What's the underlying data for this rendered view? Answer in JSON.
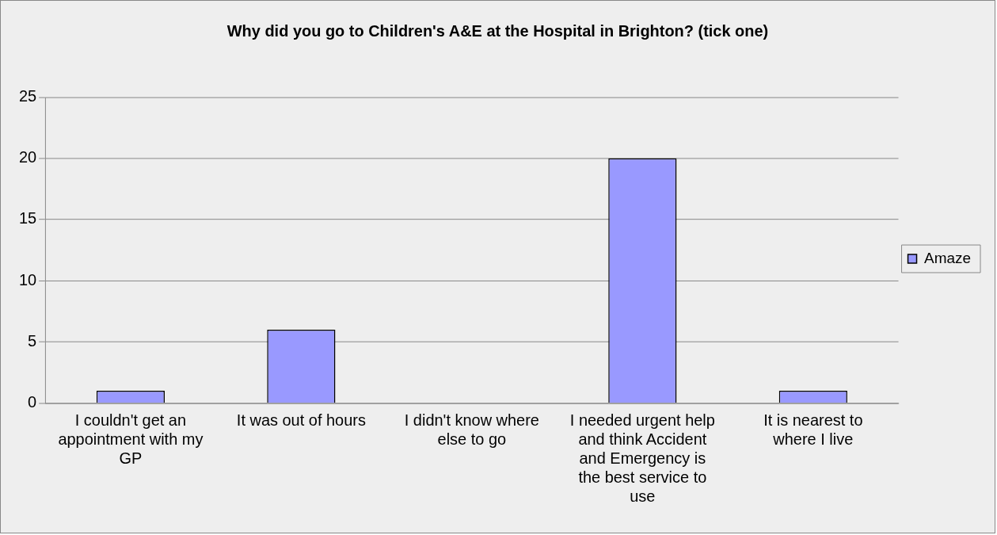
{
  "chart_data": {
    "type": "bar",
    "title": "Why did you go to Children's A&E at the Hospital in Brighton? (tick one)",
    "categories": [
      "I couldn't get an appointment with my GP",
      "It was out of hours",
      "I didn't know where else to go",
      "I needed urgent help and think Accident and Emergency is the best service to use",
      "It is nearest to where I live"
    ],
    "series": [
      {
        "name": "Amaze",
        "color": "#9999ff",
        "values": [
          1,
          6,
          0,
          20,
          1
        ]
      }
    ],
    "ylim": [
      0,
      25
    ],
    "yticks": [
      0,
      5,
      10,
      15,
      20,
      25
    ],
    "grid": "y",
    "legend": "right"
  }
}
